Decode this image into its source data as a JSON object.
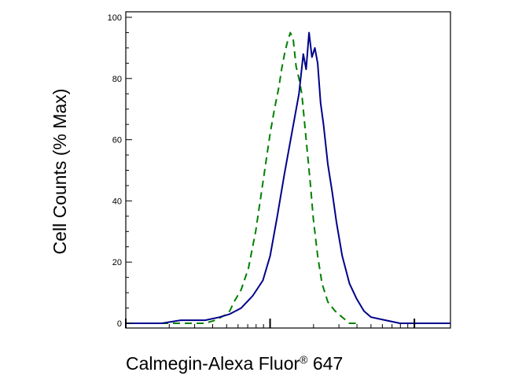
{
  "chart_data": {
    "type": "line",
    "title": "",
    "xlabel": "Calmegin-Alexa Fluor® 647",
    "xlabel_parts": {
      "main": "Calmegin-Alexa Fluor",
      "sup": "®",
      "tail": " 647"
    },
    "ylabel": "Cell Counts (% Max)",
    "x_scale": "log",
    "xlim": [
      0,
      2.25
    ],
    "ylim": [
      0,
      100
    ],
    "yticks": [
      0,
      20,
      40,
      60,
      80,
      100
    ],
    "ytick_labels": [
      "0",
      "20",
      "40",
      "60",
      "80",
      "100"
    ],
    "grid": false,
    "legend": "none",
    "series": [
      {
        "color": "#008000",
        "style": "dashed",
        "x": [
          0.0,
          0.25,
          0.45,
          0.55,
          0.62,
          0.66,
          0.7,
          0.72,
          0.75,
          0.8,
          0.85,
          0.9,
          0.95,
          1.0,
          1.03,
          1.06,
          1.08,
          1.1,
          1.12,
          1.14,
          1.16,
          1.18,
          1.2,
          1.22,
          1.24,
          1.26,
          1.28,
          1.3,
          1.33,
          1.36,
          1.4,
          1.45,
          1.5,
          1.55,
          1.6
        ],
        "y": [
          0,
          0,
          0,
          0,
          1,
          2,
          3,
          4,
          7,
          11,
          18,
          30,
          46,
          62,
          70,
          77,
          83,
          88,
          92,
          95,
          93,
          84,
          80,
          75,
          65,
          55,
          45,
          34,
          22,
          13,
          7,
          4,
          2,
          0,
          0
        ]
      },
      {
        "color": "#00008b",
        "style": "solid",
        "x": [
          0.0,
          0.25,
          0.38,
          0.45,
          0.55,
          0.65,
          0.72,
          0.8,
          0.88,
          0.95,
          1.0,
          1.05,
          1.1,
          1.15,
          1.2,
          1.23,
          1.25,
          1.27,
          1.29,
          1.31,
          1.33,
          1.35,
          1.37,
          1.4,
          1.43,
          1.46,
          1.5,
          1.55,
          1.6,
          1.65,
          1.7,
          1.8,
          1.9,
          2.0,
          2.25
        ],
        "y": [
          0,
          0,
          1,
          1,
          1,
          2,
          3,
          5,
          9,
          14,
          22,
          35,
          49,
          62,
          75,
          88,
          83,
          95,
          87,
          90,
          85,
          72,
          65,
          52,
          43,
          33,
          22,
          13,
          8,
          4,
          2,
          1,
          0,
          0,
          0
        ]
      }
    ]
  }
}
